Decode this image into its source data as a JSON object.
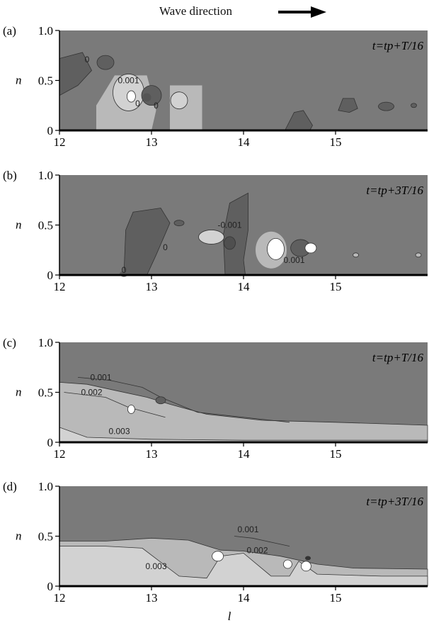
{
  "header": {
    "text": "Wave direction",
    "arrow_icon": "right-arrow-icon"
  },
  "colors": {
    "background": "#7a7a7a",
    "dark": "#5f5f5f",
    "light": "#b9b9b9",
    "lighter": "#d2d2d2",
    "white": "#ffffff"
  },
  "chart_data": [
    {
      "type": "heatmap",
      "panel": "(a)",
      "time_label": "t=tp+T/16",
      "xlabel": "",
      "ylabel": "n",
      "xlim": [
        12,
        16
      ],
      "ylim": [
        0,
        1.0
      ],
      "xticks": [
        "12",
        "13",
        "14",
        "15"
      ],
      "yticks": [
        "0",
        "0.5",
        "1.0"
      ],
      "contour_labels": [
        {
          "text": "0.001",
          "x": 12.75,
          "y": 0.47
        },
        {
          "text": "0",
          "x": 12.3,
          "y": 0.68
        },
        {
          "text": "0",
          "x": 12.85,
          "y": 0.24
        },
        {
          "text": "0",
          "x": 13.05,
          "y": 0.22
        }
      ]
    },
    {
      "type": "heatmap",
      "panel": "(b)",
      "time_label": "t=tp+3T/16",
      "xlabel": "",
      "ylabel": "n",
      "xlim": [
        12,
        16
      ],
      "ylim": [
        0,
        1.0
      ],
      "xticks": [
        "12",
        "13",
        "14",
        "15"
      ],
      "yticks": [
        "0",
        "0.5",
        "1.0"
      ],
      "contour_labels": [
        {
          "text": "-0.001",
          "x": 13.85,
          "y": 0.47
        },
        {
          "text": "0.001",
          "x": 14.55,
          "y": 0.12
        },
        {
          "text": "0",
          "x": 13.15,
          "y": 0.25
        },
        {
          "text": "0",
          "x": 12.7,
          "y": 0.02
        }
      ]
    },
    {
      "type": "heatmap",
      "panel": "(c)",
      "time_label": "t=tp+T/16",
      "xlabel": "",
      "ylabel": "n",
      "xlim": [
        12,
        16
      ],
      "ylim": [
        0,
        1.0
      ],
      "xticks": [
        "12",
        "13",
        "14",
        "15"
      ],
      "yticks": [
        "0",
        "0.5",
        "1.0"
      ],
      "contour_labels": [
        {
          "text": "0.001",
          "x": 12.45,
          "y": 0.62
        },
        {
          "text": "0.002",
          "x": 12.35,
          "y": 0.47
        },
        {
          "text": "0.003",
          "x": 12.65,
          "y": 0.08
        }
      ]
    },
    {
      "type": "heatmap",
      "panel": "(d)",
      "time_label": "t=tp+3T/16",
      "xlabel": "l",
      "ylabel": "n",
      "xlim": [
        12,
        16
      ],
      "ylim": [
        0,
        1.0
      ],
      "xticks": [
        "12",
        "13",
        "14",
        "15"
      ],
      "yticks": [
        "0",
        "0.5",
        "1.0"
      ],
      "contour_labels": [
        {
          "text": "0.001",
          "x": 14.05,
          "y": 0.54
        },
        {
          "text": "0.002",
          "x": 14.15,
          "y": 0.33
        },
        {
          "text": "0.003",
          "x": 13.05,
          "y": 0.17
        }
      ]
    }
  ]
}
